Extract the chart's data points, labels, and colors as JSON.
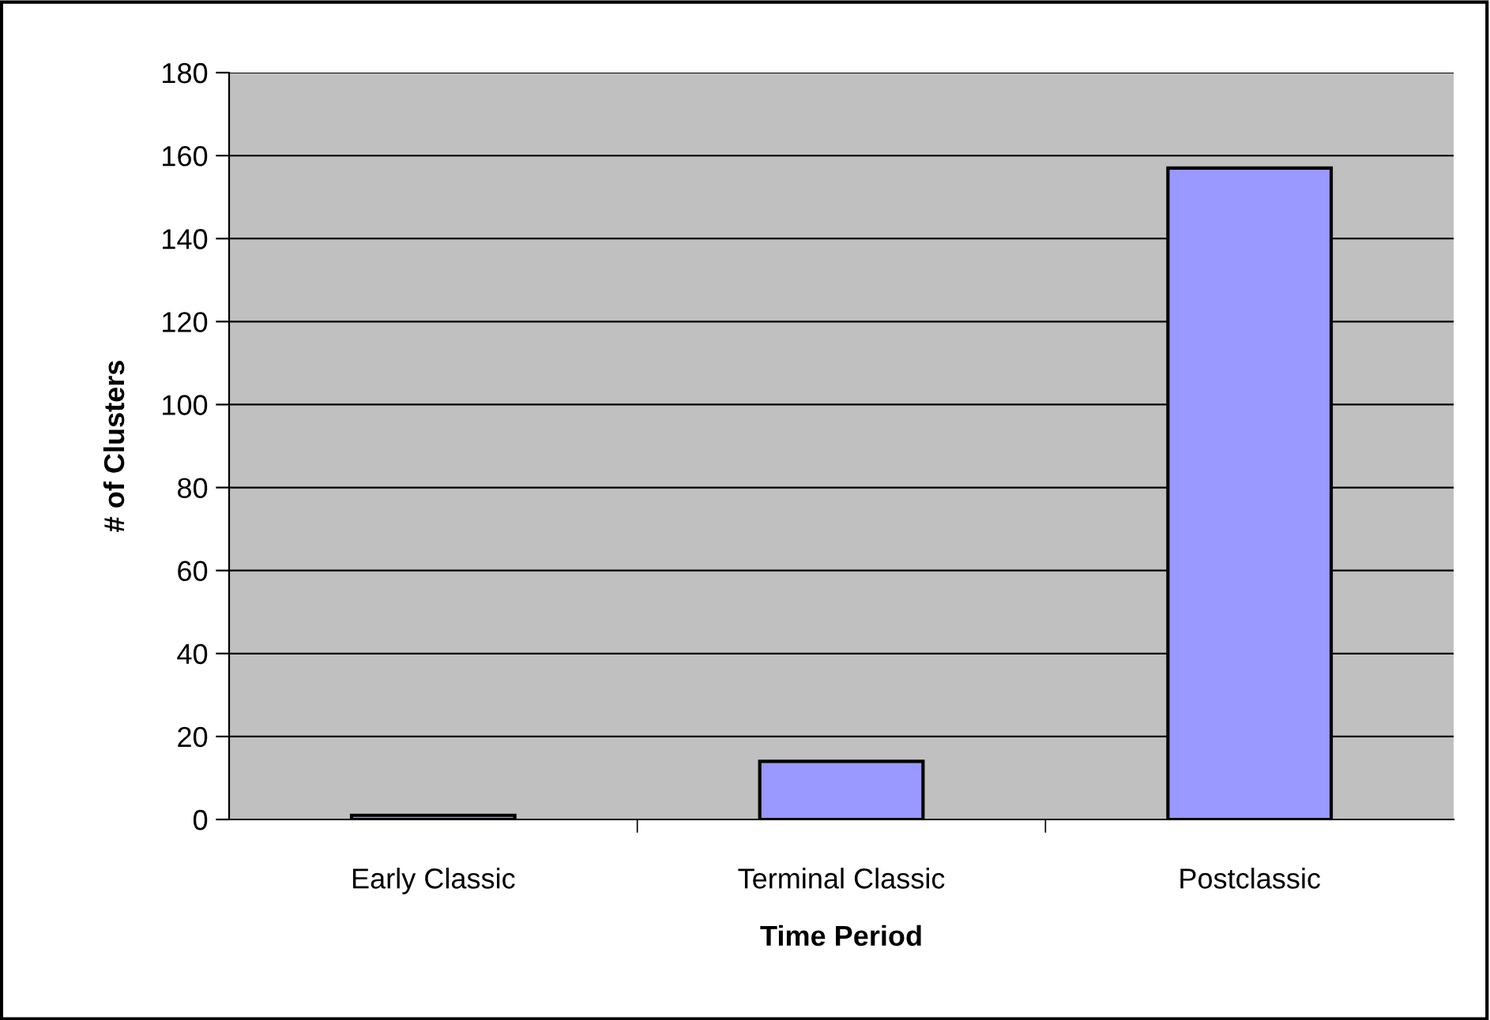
{
  "chart_data": {
    "type": "bar",
    "xlabel": "Time Period",
    "ylabel": "# of Clusters",
    "categories": [
      "Early Classic",
      "Terminal Classic",
      "Postclassic"
    ],
    "values": [
      1,
      14,
      157
    ],
    "color": "#9999ff",
    "ylim": [
      0,
      180
    ],
    "yticks": [
      0,
      20,
      40,
      60,
      80,
      100,
      120,
      140,
      160,
      180
    ],
    "grid": "y"
  }
}
